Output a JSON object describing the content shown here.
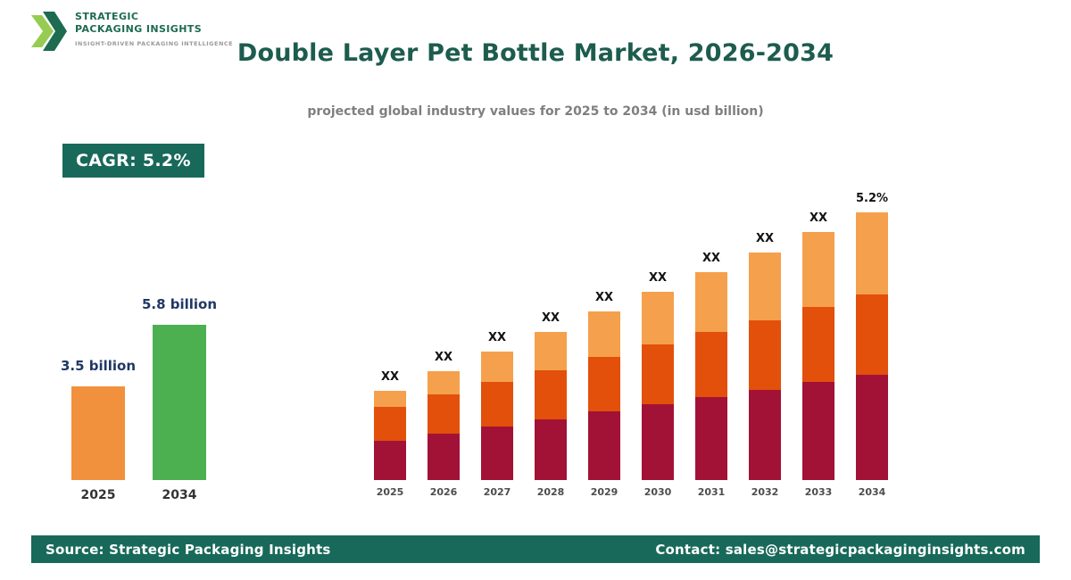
{
  "logo": {
    "line1": "STRATEGIC",
    "line2": "PACKAGING INSIGHTS",
    "tagline": "INSIGHT-DRIVEN PACKAGING INTELLIGENCE"
  },
  "header": {
    "title": "Double Layer Pet Bottle Market, 2026-2034",
    "subtitle": "projected global industry values for 2025 to 2034 (in usd billion)"
  },
  "cagr_badge": "CAGR: 5.2%",
  "footer": {
    "source": "Source: Strategic Packaging Insights",
    "contact": "Contact: sales@strategicpackaginginsights.com"
  },
  "colors": {
    "brand_green": "#18695a",
    "title_green": "#1d5c4e",
    "label_navy": "#1f3864",
    "subtitle_gray": "#7f7f7f"
  },
  "chart_data": [
    {
      "type": "bar",
      "name": "market-size-comparison",
      "categories": [
        "2025",
        "2034"
      ],
      "values": [
        3.5,
        5.8
      ],
      "unit": "usd billion",
      "value_labels": [
        "3.5 billion",
        "5.8 billion"
      ],
      "bar_colors": [
        "#f2913d",
        "#4caf50"
      ]
    },
    {
      "type": "bar",
      "stacked": true,
      "name": "projected-values-by-year",
      "categories": [
        "2025",
        "2026",
        "2027",
        "2028",
        "2029",
        "2030",
        "2031",
        "2032",
        "2033",
        "2034"
      ],
      "bar_labels": [
        "XX",
        "XX",
        "XX",
        "XX",
        "XX",
        "XX",
        "XX",
        "XX",
        "XX",
        "5.2%"
      ],
      "values_unit": "relative height (numeric values shown as XX placeholders on chart)",
      "series": [
        {
          "name": "segment-bottom",
          "color": "#a21236",
          "values": [
            44,
            52,
            60,
            68,
            77,
            85,
            93,
            101,
            110,
            118
          ]
        },
        {
          "name": "segment-middle",
          "color": "#e2500b",
          "values": [
            38,
            44,
            50,
            55,
            61,
            67,
            73,
            78,
            84,
            90
          ]
        },
        {
          "name": "segment-top",
          "color": "#f5a04c",
          "values": [
            18,
            26,
            34,
            43,
            51,
            59,
            67,
            76,
            84,
            92
          ]
        }
      ],
      "legend": false,
      "grid": false
    }
  ]
}
